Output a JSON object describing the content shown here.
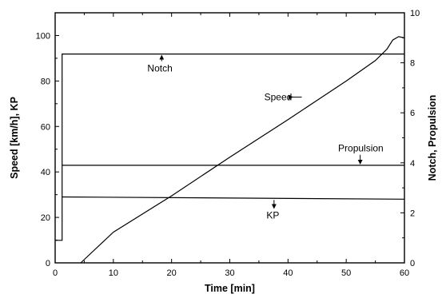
{
  "chart_data": {
    "type": "line",
    "xlabel": "Time [min]",
    "ylabel_left": "Speed [km/h], KP",
    "ylabel_right": "Notch, Propulsion",
    "xlim": [
      0,
      60
    ],
    "ylim_left": [
      0,
      110
    ],
    "ylim_right": [
      0,
      10
    ],
    "x_ticks": [
      0,
      10,
      20,
      30,
      40,
      50,
      60
    ],
    "y_ticks_left": [
      0,
      20,
      40,
      60,
      80,
      100
    ],
    "y_ticks_right": [
      0,
      2,
      4,
      6,
      8,
      10
    ],
    "grid": false,
    "series": [
      {
        "name": "Speed",
        "axis": "left",
        "x": [
          4.4,
          10,
          20,
          30,
          40,
          50,
          55,
          57,
          58,
          59,
          60
        ],
        "y": [
          0,
          13.5,
          29.5,
          46.5,
          63,
          80,
          89,
          94,
          98,
          99.5,
          99
        ]
      },
      {
        "name": "Notch",
        "axis": "right",
        "x": [
          0,
          1.2,
          1.2,
          60
        ],
        "y": [
          0.9,
          0.9,
          8.35,
          8.35
        ]
      },
      {
        "name": "Propulsion",
        "axis": "right",
        "x": [
          1.2,
          60
        ],
        "y": [
          3.9,
          3.9
        ]
      },
      {
        "name": "KP",
        "axis": "left",
        "x": [
          1.2,
          60
        ],
        "y": [
          29,
          28
        ]
      }
    ],
    "annotations": [
      {
        "text": "Notch",
        "x": 18,
        "y_right": 7.65,
        "arrow_to_y_right": 8.35,
        "arrow_x": 18.3
      },
      {
        "text": "Speed",
        "x": 38.3,
        "y_left": 71.5,
        "arrow_to_x": 42.5
      },
      {
        "text": "Propulsion",
        "x": 52.5,
        "y_right": 4.45,
        "arrow_to_y_right": 3.9,
        "arrow_x": 52.4
      },
      {
        "text": "KP",
        "x": 37.4,
        "y_left": 19.5,
        "arrow_to_y_left": 28,
        "arrow_x": 37.6
      }
    ]
  }
}
